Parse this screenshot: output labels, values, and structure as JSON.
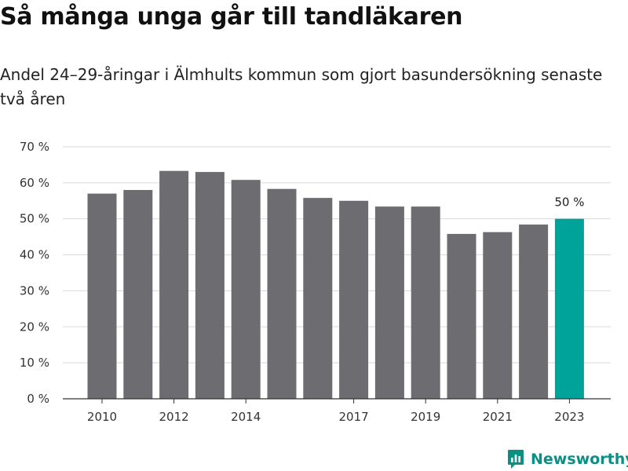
{
  "header": {
    "title": "Så många unga går till tandläkaren",
    "subtitle": "Andel 24–29-åringar i Älmhults kommun som gjort basundersökning senaste två åren"
  },
  "brand": {
    "name": "Newsworthy",
    "icon": "newsworthy-logo-icon",
    "color": "#0a8f83"
  },
  "chart_data": {
    "type": "bar",
    "categories": [
      "2010",
      "2011",
      "2012",
      "2013",
      "2014",
      "2015",
      "2016",
      "2017",
      "2018",
      "2019",
      "2020",
      "2021",
      "2022",
      "2023"
    ],
    "values": [
      57,
      58,
      63.3,
      63,
      60.8,
      58.3,
      55.8,
      55,
      53.4,
      53.4,
      45.8,
      46.3,
      48.4,
      50
    ],
    "x_tick_labels": [
      "2010",
      "2012",
      "2014",
      "2017",
      "2019",
      "2021",
      "2023"
    ],
    "y_ticks": [
      0,
      10,
      20,
      30,
      40,
      50,
      60,
      70
    ],
    "y_tick_labels": [
      "0 %",
      "10 %",
      "20 %",
      "30 %",
      "40 %",
      "50 %",
      "60 %",
      "70 %"
    ],
    "ylim": [
      0,
      70
    ],
    "grid": true,
    "legend": "none",
    "colors": {
      "default": "#6d6d71",
      "highlight": "#00a39a"
    },
    "highlight_category": "2023",
    "data_labels": [
      {
        "category": "2023",
        "text": "50 %"
      }
    ]
  }
}
